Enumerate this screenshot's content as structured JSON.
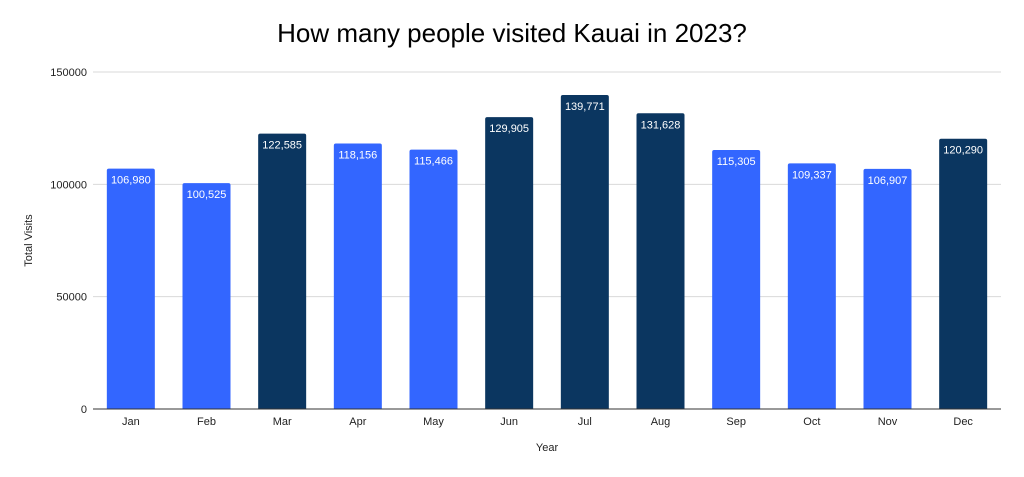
{
  "chart_data": {
    "type": "bar",
    "title": "How many people visited Kauai in 2023?",
    "xlabel": "Year",
    "ylabel": "Total Visits",
    "categories": [
      "Jan",
      "Feb",
      "Mar",
      "Apr",
      "May",
      "Jun",
      "Jul",
      "Aug",
      "Sep",
      "Oct",
      "Nov",
      "Dec"
    ],
    "values": [
      106980,
      100525,
      122585,
      118156,
      115466,
      129905,
      139771,
      131628,
      115305,
      109337,
      106907,
      120290
    ],
    "data_labels": [
      "106,980",
      "100,525",
      "122,585",
      "118,156",
      "115,466",
      "129,905",
      "139,771",
      "131,628",
      "115,305",
      "109,337",
      "106,907",
      "120,290"
    ],
    "bar_colors": [
      "#3366ff",
      "#3366ff",
      "#0b3660",
      "#3366ff",
      "#3366ff",
      "#0b3660",
      "#0b3660",
      "#0b3660",
      "#3366ff",
      "#3366ff",
      "#3366ff",
      "#0b3660"
    ],
    "yticks": [
      0,
      50000,
      100000,
      150000
    ],
    "ytick_labels": [
      "0",
      "50000",
      "100000",
      "150000"
    ],
    "ylim": [
      0,
      150000
    ],
    "grid": true,
    "legend": "none",
    "colors": {
      "primary": "#3366ff",
      "highlight": "#0b3660",
      "grid": "#d9d9d9",
      "axis": "#333333"
    }
  }
}
